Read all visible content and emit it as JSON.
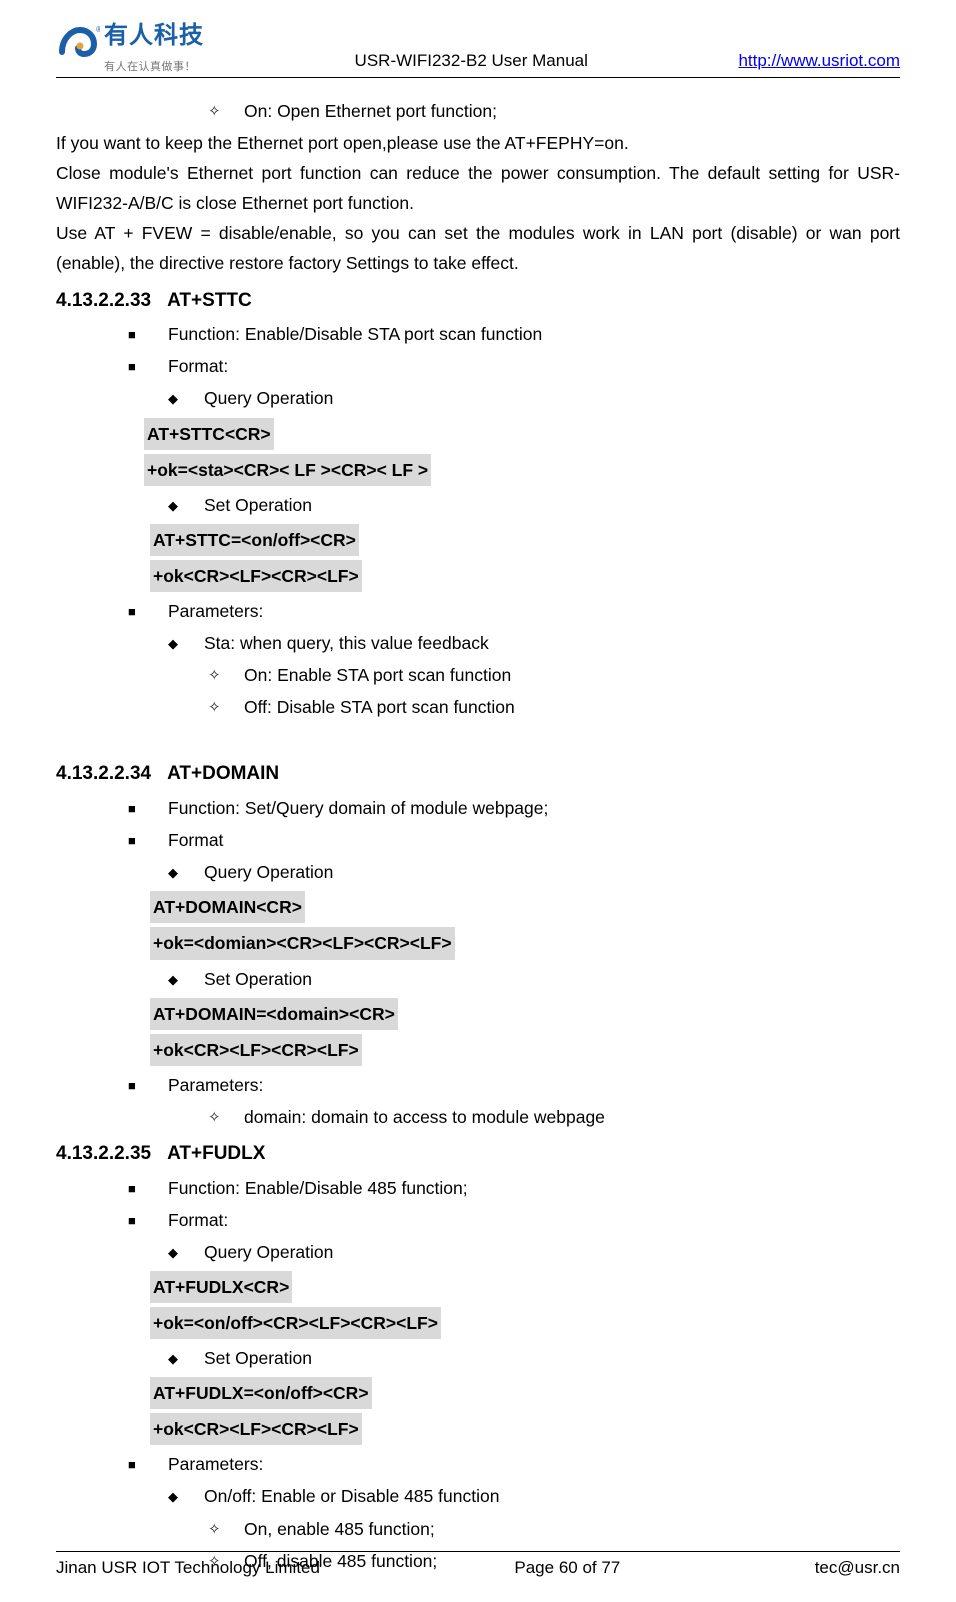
{
  "header": {
    "logo_cn": "有人科技",
    "logo_sub": "有人在认真做事！",
    "doc_title": "USR-WIFI232-B2 User Manual",
    "site_link": "http://www.usriot.com"
  },
  "top_open_item": "On: Open Ethernet port function;",
  "intro_lines": [
    "If you want to keep the Ethernet port open,please use the AT+FEPHY=on.",
    "Close module's Ethernet port function can reduce the power consumption. The default setting for USR-WIFI232-A/B/C is close Ethernet port function.",
    "Use AT + FVEW = disable/enable, so you can set the modules work in LAN port (disable) or wan port (enable), the directive restore factory Settings to take effect."
  ],
  "sections": [
    {
      "num": "4.13.2.2.33",
      "title": "AT+STTC",
      "items": [
        {
          "type": "square",
          "text": "Function: Enable/Disable STA port scan function"
        },
        {
          "type": "square",
          "text": "Format:"
        },
        {
          "type": "diamond",
          "text": "Query Operation"
        },
        {
          "type": "code",
          "indent": "slight",
          "text": "AT+STTC<CR>"
        },
        {
          "type": "code",
          "indent": "slight",
          "text": "+ok=<sta><CR>< LF ><CR>< LF >",
          "prepad": false,
          "wrap_line": true
        },
        {
          "type": "diamond",
          "text": "Set Operation"
        },
        {
          "type": "code",
          "indent": "normal",
          "text": "AT+STTC=<on/off><CR>"
        },
        {
          "type": "code",
          "indent": "normal",
          "text": "+ok<CR><LF><CR><LF>"
        },
        {
          "type": "square",
          "text": "Parameters:"
        },
        {
          "type": "diamond",
          "text": "Sta: when query, this value feedback"
        },
        {
          "type": "open",
          "text": "On: Enable STA port scan function"
        },
        {
          "type": "open",
          "text": "Off: Disable STA port scan function"
        }
      ]
    },
    {
      "num": "4.13.2.2.34",
      "title": "AT+DOMAIN",
      "items": [
        {
          "type": "square",
          "text": "Function: Set/Query domain of module webpage;"
        },
        {
          "type": "square",
          "text": "Format"
        },
        {
          "type": "diamond",
          "text": "Query Operation"
        },
        {
          "type": "code",
          "indent": "normal",
          "text": "AT+DOMAIN<CR>"
        },
        {
          "type": "code",
          "indent": "normal",
          "text": "+ok=<domian><CR><LF><CR><LF>"
        },
        {
          "type": "diamond",
          "text": "Set Operation"
        },
        {
          "type": "code",
          "indent": "normal",
          "text": "AT+DOMAIN=<domain><CR>"
        },
        {
          "type": "code",
          "indent": "normal",
          "text": "+ok<CR><LF><CR><LF>"
        },
        {
          "type": "square",
          "text": "Parameters:"
        },
        {
          "type": "open",
          "text": "domain: domain to access to module webpage"
        }
      ]
    },
    {
      "num": "4.13.2.2.35",
      "title": "AT+FUDLX",
      "items": [
        {
          "type": "square",
          "text": "Function: Enable/Disable 485 function;"
        },
        {
          "type": "square",
          "text": "Format:"
        },
        {
          "type": "diamond",
          "text": "Query Operation"
        },
        {
          "type": "code",
          "indent": "normal",
          "text": "AT+FUDLX<CR>"
        },
        {
          "type": "code",
          "indent": "normal",
          "text": "+ok=<on/off><CR><LF><CR><LF>"
        },
        {
          "type": "diamond",
          "text": "Set Operation"
        },
        {
          "type": "code",
          "indent": "normal",
          "text": "AT+FUDLX=<on/off><CR>"
        },
        {
          "type": "code",
          "indent": "normal",
          "text": "+ok<CR><LF><CR><LF>"
        },
        {
          "type": "square",
          "text": "Parameters:"
        },
        {
          "type": "diamond",
          "text": "On/off: Enable or Disable 485 function"
        },
        {
          "type": "open",
          "text": "On, enable 485 function;"
        },
        {
          "type": "open",
          "text": "Off, disable 485 function;"
        }
      ]
    }
  ],
  "footer": {
    "left": "Jinan USR IOT Technology Limited",
    "center": "Page 60 of 77",
    "right": "tec@usr.cn"
  }
}
